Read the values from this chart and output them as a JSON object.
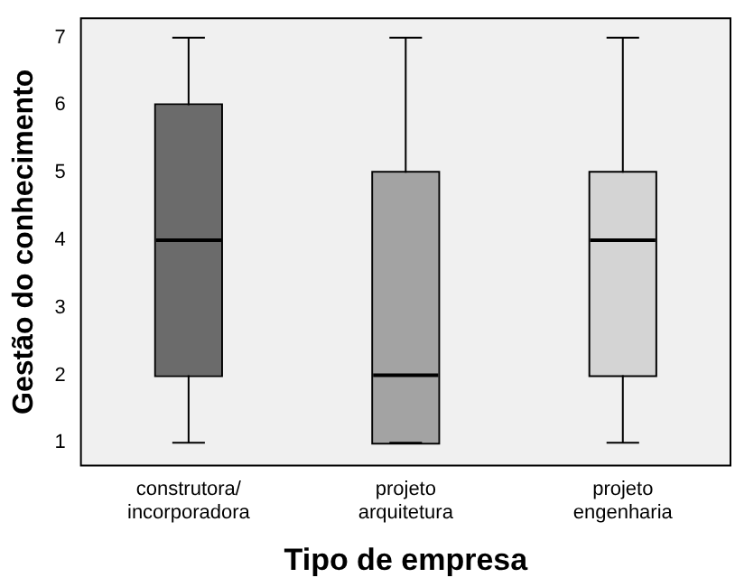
{
  "chart_data": {
    "type": "box",
    "xlabel": "Tipo de empresa",
    "ylabel": "Gestão do conhecimento",
    "categories": [
      "construtora/ incorporadora",
      "projeto arquitetura",
      "projeto engenharia"
    ],
    "boxes": [
      {
        "low": 1,
        "q1": 2,
        "median": 4,
        "q3": 6,
        "high": 7
      },
      {
        "low": 1,
        "q1": 1,
        "median": 2,
        "q3": 5,
        "high": 7
      },
      {
        "low": 1,
        "q1": 2,
        "median": 4,
        "q3": 5,
        "high": 7
      }
    ],
    "colors": [
      "#6b6b6b",
      "#a3a3a3",
      "#d4d4d4"
    ],
    "ylim": [
      0.65,
      7.3
    ],
    "yticks": [
      1,
      2,
      3,
      4,
      5,
      6,
      7
    ],
    "grid": false,
    "legend": false
  }
}
